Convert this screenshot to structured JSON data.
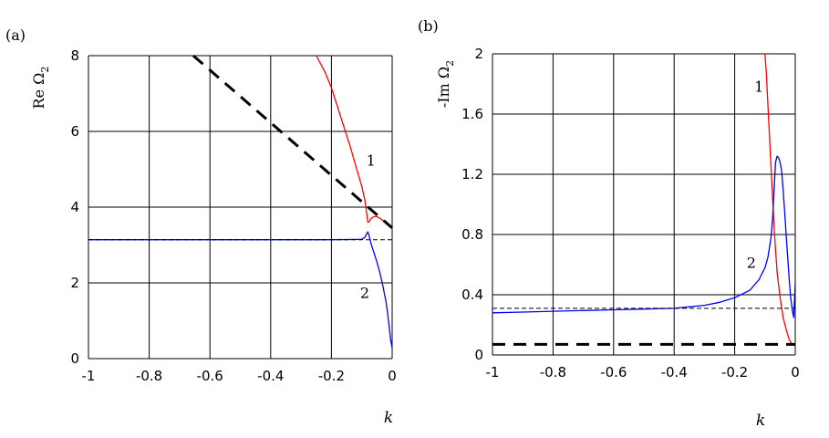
{
  "chart_data": [
    {
      "type": "line",
      "panel_label": "(a)",
      "xlabel": "k",
      "ylabel": "Re Ω",
      "ylabel_sub": "2",
      "xlim": [
        -1,
        0
      ],
      "ylim": [
        0,
        8
      ],
      "xticks": [
        -1,
        -0.8,
        -0.6,
        -0.4,
        -0.2,
        0
      ],
      "xtick_labels": [
        "-1",
        "-0.8",
        "-0.6",
        "-0.4",
        "-0.2",
        "0"
      ],
      "yticks": [
        0,
        2,
        4,
        6,
        8
      ],
      "ytick_labels": [
        "0",
        "2",
        "4",
        "6",
        "8"
      ],
      "grid": true,
      "series": [
        {
          "name": "1",
          "color": "#ff0000",
          "style": "solid",
          "x": [
            -0.25,
            -0.22,
            -0.2,
            -0.18,
            -0.16,
            -0.14,
            -0.12,
            -0.1,
            -0.09,
            -0.085,
            -0.08,
            -0.075,
            -0.07,
            -0.06,
            -0.05,
            -0.04,
            -0.03,
            -0.02,
            -0.01,
            0
          ],
          "y": [
            8.0,
            7.55,
            7.15,
            6.65,
            6.15,
            5.65,
            5.1,
            4.55,
            4.2,
            3.9,
            3.6,
            3.62,
            3.7,
            3.75,
            3.75,
            3.7,
            3.65,
            3.58,
            3.52,
            3.45
          ]
        },
        {
          "name": "2",
          "color": "#0000ff",
          "style": "solid",
          "x": [
            -1,
            -0.9,
            -0.8,
            -0.6,
            -0.4,
            -0.2,
            -0.1,
            -0.09,
            -0.085,
            -0.08,
            -0.075,
            -0.07,
            -0.06,
            -0.05,
            -0.04,
            -0.03,
            -0.02,
            -0.015,
            -0.01,
            -0.005,
            0
          ],
          "y": [
            3.14,
            3.14,
            3.14,
            3.14,
            3.14,
            3.14,
            3.15,
            3.2,
            3.28,
            3.35,
            3.22,
            3.05,
            2.8,
            2.55,
            2.25,
            1.9,
            1.5,
            1.2,
            0.85,
            0.5,
            0.28
          ]
        },
        {
          "name": "",
          "color": "#000000",
          "style": "thick-dash",
          "x": [
            -0.655,
            0
          ],
          "y": [
            8.0,
            3.45
          ]
        },
        {
          "name": "",
          "color": "#000000",
          "style": "thin-dash",
          "x": [
            -1,
            0
          ],
          "y": [
            3.14,
            3.14
          ]
        }
      ],
      "annotations": [
        {
          "text": "1",
          "x": -0.07,
          "y": 5.1
        },
        {
          "text": "2",
          "x": -0.09,
          "y": 1.6
        }
      ]
    },
    {
      "type": "line",
      "panel_label": "(b)",
      "xlabel": "k",
      "ylabel": "-Im Ω",
      "ylabel_sub": "2",
      "xlim": [
        -1,
        0
      ],
      "ylim": [
        0,
        2
      ],
      "xticks": [
        -1,
        -0.8,
        -0.6,
        -0.4,
        -0.2,
        0
      ],
      "xtick_labels": [
        "-1",
        "-0.8",
        "-0.6",
        "-0.4",
        "-0.2",
        "0"
      ],
      "yticks": [
        0,
        0.4,
        0.8,
        1.2,
        1.6,
        2
      ],
      "ytick_labels": [
        "0",
        "0.4",
        "0.8",
        "1.2",
        "1.6",
        "2"
      ],
      "grid": true,
      "series": [
        {
          "name": "1",
          "color": "#ff0000",
          "style": "solid",
          "x": [
            -0.1,
            -0.095,
            -0.09,
            -0.085,
            -0.08,
            -0.075,
            -0.07,
            -0.065,
            -0.06,
            -0.05,
            -0.04,
            -0.03,
            -0.02,
            -0.01,
            0
          ],
          "y": [
            2.0,
            1.85,
            1.65,
            1.45,
            1.25,
            1.05,
            0.85,
            0.7,
            0.55,
            0.38,
            0.25,
            0.17,
            0.1,
            0.07,
            0.06
          ]
        },
        {
          "name": "2",
          "color": "#0000ff",
          "style": "solid",
          "x": [
            -1,
            -0.9,
            -0.8,
            -0.7,
            -0.6,
            -0.5,
            -0.4,
            -0.3,
            -0.25,
            -0.2,
            -0.15,
            -0.12,
            -0.1,
            -0.09,
            -0.08,
            -0.075,
            -0.07,
            -0.065,
            -0.06,
            -0.055,
            -0.05,
            -0.045,
            -0.04,
            -0.035,
            -0.03,
            -0.025,
            -0.02,
            -0.015,
            -0.01,
            -0.005,
            0
          ],
          "y": [
            0.28,
            0.285,
            0.29,
            0.295,
            0.3,
            0.305,
            0.31,
            0.33,
            0.35,
            0.38,
            0.43,
            0.5,
            0.58,
            0.65,
            0.78,
            0.9,
            1.1,
            1.28,
            1.32,
            1.31,
            1.28,
            1.22,
            1.1,
            0.95,
            0.8,
            0.65,
            0.5,
            0.38,
            0.3,
            0.25,
            0.48
          ]
        },
        {
          "name": "",
          "color": "#000000",
          "style": "thick-dash",
          "x": [
            -1,
            0
          ],
          "y": [
            0.07,
            0.07
          ]
        },
        {
          "name": "",
          "color": "#000000",
          "style": "thin-dash",
          "x": [
            -1,
            0
          ],
          "y": [
            0.31,
            0.31
          ]
        }
      ],
      "annotations": [
        {
          "text": "1",
          "x": -0.12,
          "y": 1.75
        },
        {
          "text": "2",
          "x": -0.145,
          "y": 0.58
        }
      ]
    }
  ]
}
